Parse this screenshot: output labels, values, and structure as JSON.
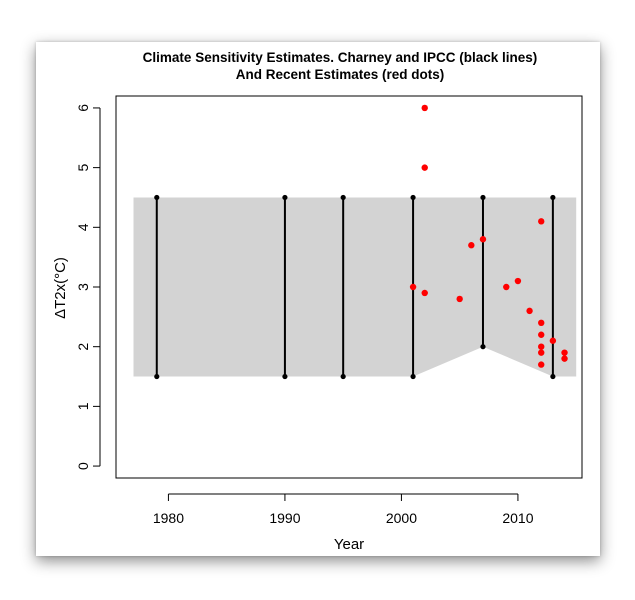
{
  "chart_data": {
    "type": "scatter",
    "title": "Climate Sensitivity Estimates. Charney and IPCC (black lines)",
    "subtitle": "And Recent Estimates (red dots)",
    "xlabel": "Year",
    "ylabel": "ΔT2x(°C)",
    "xlim": [
      1975.5,
      2015.5
    ],
    "ylim": [
      -0.2,
      6.2
    ],
    "xticks": [
      1980,
      1990,
      2000,
      2010
    ],
    "yticks": [
      0,
      1,
      2,
      3,
      4,
      5,
      6
    ],
    "grid": false,
    "legend": "none",
    "range_band": {
      "color": "#d3d3d3",
      "upper": [
        [
          1977,
          4.5
        ],
        [
          2015,
          4.5
        ]
      ],
      "lower": [
        [
          1977,
          1.5
        ],
        [
          2001,
          1.5
        ],
        [
          2007,
          2.0
        ],
        [
          2013,
          1.5
        ],
        [
          2015,
          1.5
        ]
      ]
    },
    "ranges": [
      {
        "year": 1979,
        "low": 1.5,
        "high": 4.5
      },
      {
        "year": 1990,
        "low": 1.5,
        "high": 4.5
      },
      {
        "year": 1995,
        "low": 1.5,
        "high": 4.5
      },
      {
        "year": 2001,
        "low": 1.5,
        "high": 4.5
      },
      {
        "year": 2007,
        "low": 2.0,
        "high": 4.5
      },
      {
        "year": 2013,
        "low": 1.5,
        "high": 4.5
      }
    ],
    "range_color": "#000000",
    "estimates_color": "#ff0000",
    "estimates": [
      {
        "x": 2001,
        "y": 3.0
      },
      {
        "x": 2002,
        "y": 6.0
      },
      {
        "x": 2002,
        "y": 5.0
      },
      {
        "x": 2002,
        "y": 2.9
      },
      {
        "x": 2005,
        "y": 2.8
      },
      {
        "x": 2006,
        "y": 3.7
      },
      {
        "x": 2007,
        "y": 3.8
      },
      {
        "x": 2009,
        "y": 3.0
      },
      {
        "x": 2010,
        "y": 3.1
      },
      {
        "x": 2011,
        "y": 2.6
      },
      {
        "x": 2012,
        "y": 4.1
      },
      {
        "x": 2012,
        "y": 2.4
      },
      {
        "x": 2012,
        "y": 2.2
      },
      {
        "x": 2012,
        "y": 2.0
      },
      {
        "x": 2012,
        "y": 1.9
      },
      {
        "x": 2012,
        "y": 1.7
      },
      {
        "x": 2013,
        "y": 2.1
      },
      {
        "x": 2014,
        "y": 1.9
      },
      {
        "x": 2014,
        "y": 1.8
      }
    ]
  }
}
